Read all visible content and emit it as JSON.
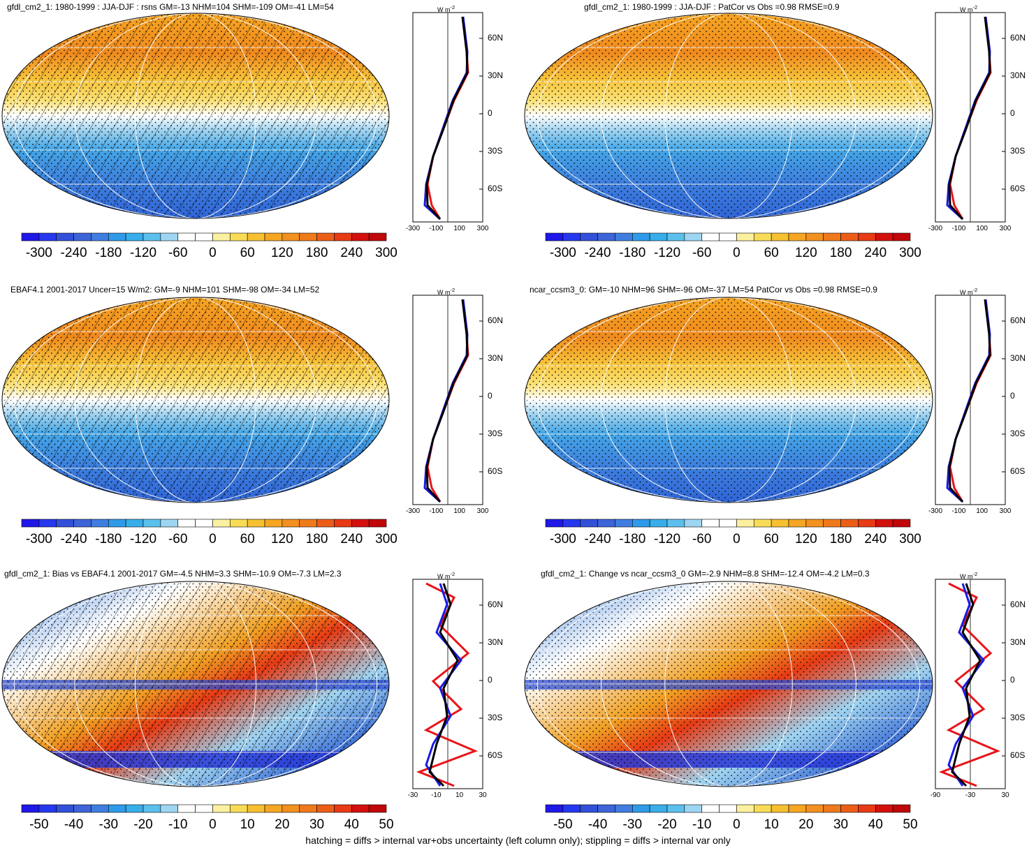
{
  "footnote": "hatching = diffs > internal var+obs uncertainty (left column only); stippling = diffs > internal var only",
  "zonal_units": "W m",
  "zonal_units_sup": "-2",
  "lat_labels": [
    "60N",
    "30N",
    "0",
    "30S",
    "60S"
  ],
  "colors": {
    "levels_abs": [
      "#1f18e8",
      "#2538ee",
      "#3250d8",
      "#3d64d8",
      "#3f7ee0",
      "#2f9be8",
      "#38aeea",
      "#5cc0ec",
      "#9dd6f2",
      "#ffffff",
      "#ffffff",
      "#fbefa0",
      "#f8dc58",
      "#f6c030",
      "#f5a623",
      "#f29020",
      "#ef7a1c",
      "#ec5e17",
      "#e83a14",
      "#d4100d",
      "#c0080a"
    ],
    "model": "#e8141a",
    "obs": "#1a1ae6",
    "ref": "#000000"
  },
  "panels": [
    {
      "title": "gfdl_cm2_1: 1980-1999 : JJA-DJF : rsns GM=-13 NHM=104 SHM=-109 OM=-41 LM=54",
      "colorbar_labels": [
        "-300",
        "-240",
        "-180",
        "-120",
        "-60",
        "0",
        "60",
        "120",
        "180",
        "240",
        "300"
      ],
      "zonal_xlabels": [
        "-300",
        "-100",
        "100",
        "300"
      ],
      "hatched": true
    },
    {
      "title": "gfdl_cm2_1: 1980-1999 : JJA-DJF : PatCor vs Obs =0.98 RMSE=0.9",
      "colorbar_labels": [
        "-300",
        "-240",
        "-180",
        "-120",
        "-60",
        "0",
        "60",
        "120",
        "180",
        "240",
        "300"
      ],
      "zonal_xlabels": [
        "-300",
        "-100",
        "100",
        "300"
      ],
      "hatched": false
    },
    {
      "title": "EBAF4.1 2001-2017 Uncer=15 W/m2: GM=-9 NHM=101 SHM=-98 OM=-34 LM=52",
      "colorbar_labels": [
        "-300",
        "-240",
        "-180",
        "-120",
        "-60",
        "0",
        "60",
        "120",
        "180",
        "240",
        "300"
      ],
      "zonal_xlabels": [
        "-300",
        "-100",
        "100",
        "300"
      ],
      "hatched": true
    },
    {
      "title": "ncar_ccsm3_0: GM=-10 NHM=96 SHM=-96 OM=-37 LM=54 PatCor vs Obs =0.98 RMSE=0.9",
      "colorbar_labels": [
        "-300",
        "-240",
        "-180",
        "-120",
        "-60",
        "0",
        "60",
        "120",
        "180",
        "240",
        "300"
      ],
      "zonal_xlabels": [
        "-300",
        "-100",
        "100",
        "300"
      ],
      "hatched": false
    },
    {
      "title": "gfdl_cm2_1: Bias vs EBAF4.1 2001-2017 GM=-4.5 NHM=3.3 SHM=-10.9 OM=-7.3 LM=2.3",
      "colorbar_labels": [
        "-50",
        "-40",
        "-30",
        "-20",
        "-10",
        "0",
        "10",
        "20",
        "30",
        "40",
        "50"
      ],
      "zonal_xlabels": [
        "-30",
        "-10",
        "10",
        "30"
      ],
      "hatched": true
    },
    {
      "title": "gfdl_cm2_1: Change vs ncar_ccsm3_0 GM=-2.9 NHM=8.8 SHM=-12.4 OM=-4.2 LM=0.3",
      "colorbar_labels": [
        "-50",
        "-40",
        "-30",
        "-20",
        "-10",
        "0",
        "10",
        "20",
        "30",
        "40",
        "50"
      ],
      "zonal_xlabels": [
        "-90",
        "-30",
        "30"
      ],
      "hatched": false
    }
  ]
}
